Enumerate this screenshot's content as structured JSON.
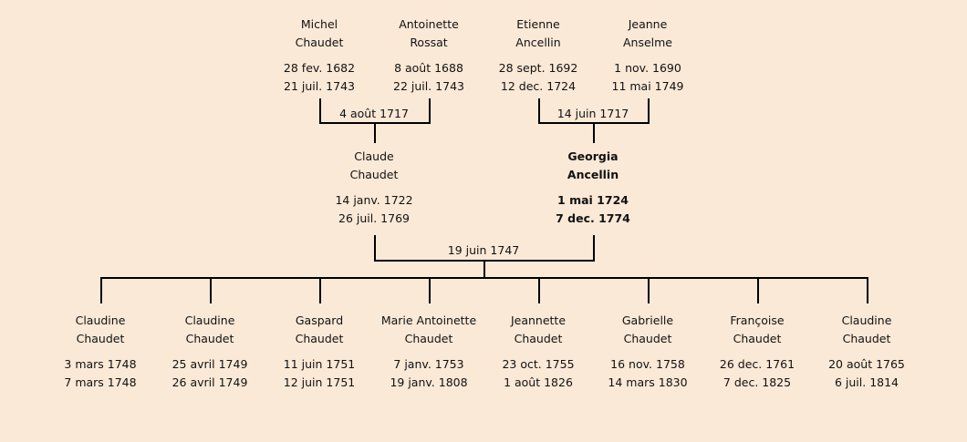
{
  "grandparents": [
    {
      "first": "Michel",
      "last": "Chaudet",
      "birth": "28 fev. 1682",
      "death": "21 juil. 1743"
    },
    {
      "first": "Antoinette",
      "last": "Rossat",
      "birth": "8 août 1688",
      "death": "22 juil. 1743"
    },
    {
      "first": "Etienne",
      "last": "Ancellin",
      "birth": "28 sept. 1692",
      "death": "12 dec. 1724"
    },
    {
      "first": "Jeanne",
      "last": "Anselme",
      "birth": "1 nov. 1690",
      "death": "11 mai 1749"
    }
  ],
  "grandparent_marriages": [
    "4 août 1717",
    "14 juin 1717"
  ],
  "parents": [
    {
      "first": "Claude",
      "last": "Chaudet",
      "birth": "14 janv. 1722",
      "death": "26 juil. 1769",
      "highlight": false
    },
    {
      "first": "Georgia",
      "last": "Ancellin",
      "birth": "1 mai 1724",
      "death": "7 dec. 1774",
      "highlight": true
    }
  ],
  "parent_marriage": "19 juin 1747",
  "children": [
    {
      "first": "Claudine",
      "last": "Chaudet",
      "birth": "3 mars 1748",
      "death": "7 mars 1748"
    },
    {
      "first": "Claudine",
      "last": "Chaudet",
      "birth": "25 avril 1749",
      "death": "26 avril 1749"
    },
    {
      "first": "Gaspard",
      "last": "Chaudet",
      "birth": "11 juin 1751",
      "death": "12 juin 1751"
    },
    {
      "first": "Marie Antoinette",
      "last": "Chaudet",
      "birth": "7 janv. 1753",
      "death": "19 janv. 1808"
    },
    {
      "first": "Jeannette",
      "last": "Chaudet",
      "birth": "23 oct. 1755",
      "death": "1 août 1826"
    },
    {
      "first": "Gabrielle",
      "last": "Chaudet",
      "birth": "16 nov. 1758",
      "death": "14 mars 1830"
    },
    {
      "first": "Françoise",
      "last": "Chaudet",
      "birth": "26 dec. 1761",
      "death": "7 dec. 1825"
    },
    {
      "first": "Claudine",
      "last": "Chaudet",
      "birth": "20 août 1765",
      "death": "6 juil. 1814"
    }
  ],
  "colors": {
    "background": "#fbe9d7",
    "line": "#000000"
  }
}
